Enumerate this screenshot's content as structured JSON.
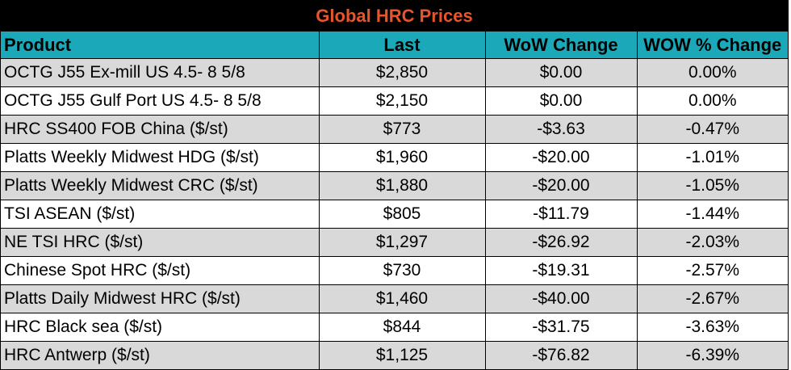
{
  "title": "Global HRC Prices",
  "colors": {
    "title_bg": "#000000",
    "title_text": "#E8552B",
    "header_bg": "#1BA9B9",
    "row_shade": "#D9D9D9",
    "row_plain": "#FFFFFF"
  },
  "columns": [
    "Product",
    "Last",
    "WoW Change",
    "WOW % Change"
  ],
  "rows": [
    {
      "product": "OCTG J55 Ex-mill US 4.5- 8 5/8",
      "last": "$2,850",
      "wow": "$0.00",
      "pct": "0.00%"
    },
    {
      "product": "OCTG J55 Gulf Port US 4.5- 8 5/8",
      "last": "$2,150",
      "wow": "$0.00",
      "pct": "0.00%"
    },
    {
      "product": "HRC SS400 FOB China ($/st)",
      "last": "$773",
      "wow": "-$3.63",
      "pct": "-0.47%"
    },
    {
      "product": "Platts Weekly Midwest HDG ($/st)",
      "last": "$1,960",
      "wow": "-$20.00",
      "pct": "-1.01%"
    },
    {
      "product": "Platts Weekly Midwest CRC ($/st)",
      "last": "$1,880",
      "wow": "-$20.00",
      "pct": "-1.05%"
    },
    {
      "product": "TSI ASEAN ($/st)",
      "last": "$805",
      "wow": "-$11.79",
      "pct": "-1.44%"
    },
    {
      "product": "NE TSI HRC ($/st)",
      "last": "$1,297",
      "wow": "-$26.92",
      "pct": "-2.03%"
    },
    {
      "product": "Chinese Spot HRC ($/st)",
      "last": "$730",
      "wow": "-$19.31",
      "pct": "-2.57%"
    },
    {
      "product": "Platts Daily Midwest HRC ($/st)",
      "last": "$1,460",
      "wow": "-$40.00",
      "pct": "-2.67%"
    },
    {
      "product": "HRC Black sea ($/st)",
      "last": "$844",
      "wow": "-$31.75",
      "pct": "-3.63%"
    },
    {
      "product": "HRC Antwerp ($/st)",
      "last": "$1,125",
      "wow": "-$76.82",
      "pct": "-6.39%"
    }
  ]
}
